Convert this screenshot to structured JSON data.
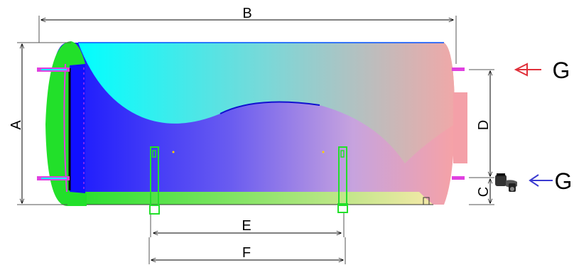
{
  "labels": {
    "a": "A",
    "b": "B",
    "c": "C",
    "d": "D",
    "e": "E",
    "f": "F",
    "g_top": "G",
    "g_bottom": "G"
  },
  "colors": {
    "hot_arrow": "#e0303a",
    "cold_arrow": "#3a3ad0",
    "insulation": "#22e02a",
    "cyan": "#00ffff",
    "tank_blue": "#1a1aff",
    "tank_pink": "#f4a0a8",
    "magenta": "#e040e0"
  },
  "icons": {
    "hot_outlet": "arrow-left-icon",
    "cold_inlet": "arrow-left-icon",
    "valve": "safety-valve-icon"
  }
}
